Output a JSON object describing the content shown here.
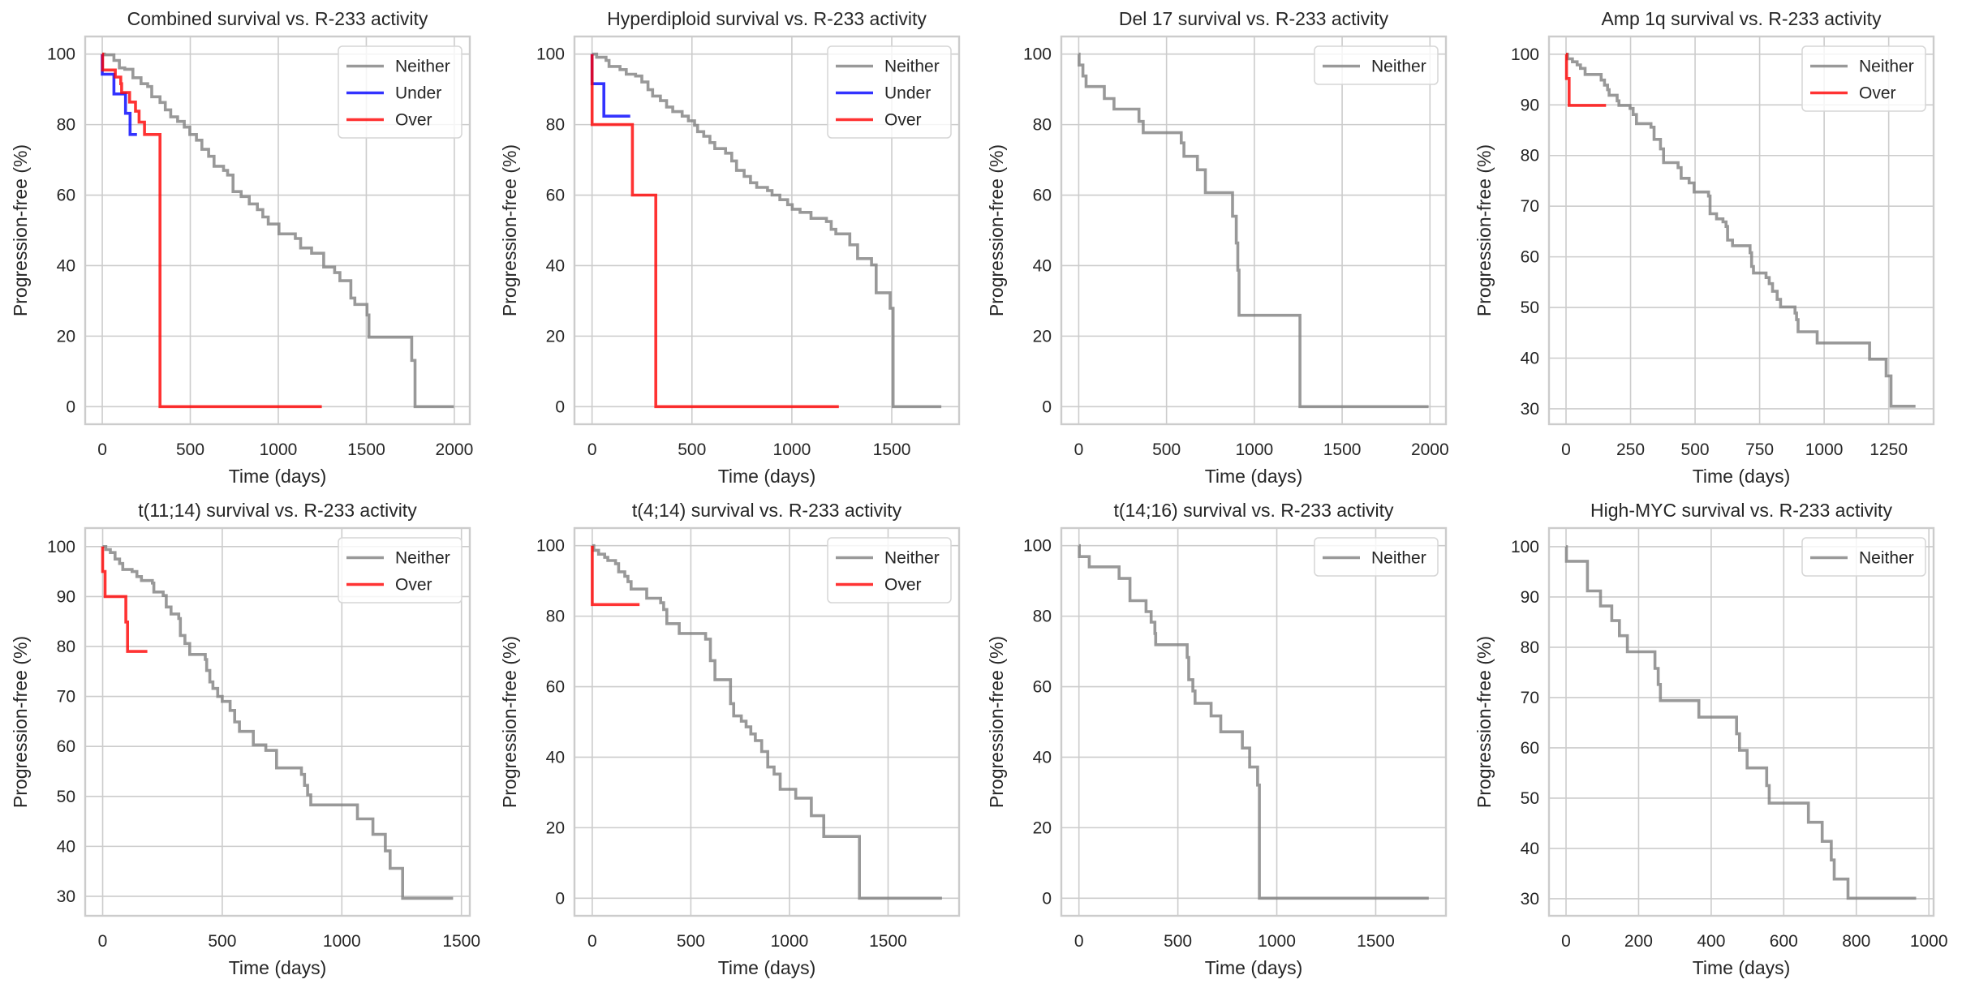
{
  "figure": {
    "colors": {
      "Neither": "#808080",
      "Under": "#0000ff",
      "Over": "#ff0000"
    }
  },
  "chart_data": [
    {
      "type": "line",
      "title": "Combined survival vs. R-233 activity",
      "xlabel": "Time (days)",
      "ylabel": "Progression-free (%)",
      "xlim": [
        -97,
        2088
      ],
      "ylim": [
        -5,
        105
      ],
      "xticks": [
        0,
        500,
        1000,
        1500,
        2000
      ],
      "yticks": [
        0,
        20,
        40,
        60,
        80,
        100
      ],
      "grid": true,
      "legend": "top-right",
      "series": [
        {
          "name": "Neither",
          "step": true,
          "x": [
            0,
            12,
            66,
            97,
            128,
            174,
            220,
            258,
            281,
            328,
            358,
            389,
            428,
            466,
            497,
            535,
            566,
            604,
            635,
            689,
            712,
            743,
            789,
            835,
            881,
            912,
            943,
            1004,
            1097,
            1127,
            1189,
            1258,
            1320,
            1350,
            1412,
            1435,
            1504,
            1515,
            1523,
            1758,
            1777,
            1997
          ],
          "y": [
            100,
            99.8,
            98.2,
            96.1,
            95.7,
            93.3,
            91.6,
            90.8,
            87.9,
            86.3,
            84.2,
            82.2,
            80.9,
            79.3,
            77.2,
            75.6,
            73,
            71,
            68.2,
            67,
            65.7,
            61,
            59.6,
            57.5,
            55.9,
            53.8,
            51.8,
            49,
            47.7,
            45,
            43.5,
            39.6,
            38,
            35.7,
            30.8,
            29,
            26,
            19.7,
            19.7,
            13.1,
            0,
            0
          ]
        },
        {
          "name": "Under",
          "step": true,
          "x": [
            0,
            0,
            66,
            132,
            158,
            197
          ],
          "y": [
            100,
            94.3,
            88.7,
            83.2,
            77.2,
            77.2
          ]
        },
        {
          "name": "Over",
          "step": true,
          "x": [
            0,
            2,
            74,
            105,
            110,
            155,
            189,
            209,
            240,
            328,
            1247
          ],
          "y": [
            100,
            95.5,
            93.5,
            91.6,
            89.1,
            86.4,
            83.8,
            80.7,
            77.2,
            0,
            0
          ]
        }
      ]
    },
    {
      "type": "line",
      "title": "Hyperdiploid survival vs. R-233 activity",
      "xlabel": "Time (days)",
      "ylabel": "Progression-free (%)",
      "xlim": [
        -88,
        1837
      ],
      "ylim": [
        -5,
        105
      ],
      "xticks": [
        0,
        500,
        1000,
        1500
      ],
      "yticks": [
        0,
        20,
        40,
        60,
        80,
        100
      ],
      "grid": true,
      "legend": "top-right",
      "series": [
        {
          "name": "Neither",
          "step": true,
          "x": [
            0,
            23,
            70,
            85,
            140,
            171,
            218,
            249,
            280,
            303,
            342,
            373,
            404,
            451,
            482,
            513,
            528,
            559,
            590,
            614,
            668,
            699,
            723,
            761,
            793,
            824,
            878,
            901,
            940,
            979,
            1002,
            1041,
            1096,
            1173,
            1197,
            1220,
            1290,
            1329,
            1399,
            1422,
            1492,
            1507,
            1748
          ],
          "y": [
            100,
            99.1,
            98.2,
            96.5,
            95.6,
            94.3,
            93.8,
            92.1,
            89.9,
            88.1,
            86.8,
            85,
            83.7,
            82.4,
            81.1,
            79.8,
            78,
            76.7,
            74.9,
            73.2,
            71.9,
            69.7,
            67,
            65.3,
            63.5,
            62.2,
            61.3,
            60,
            58.7,
            57.3,
            56,
            55.1,
            53.4,
            52.5,
            50.3,
            49,
            45.9,
            42,
            40.2,
            32.3,
            27.9,
            0,
            0
          ]
        },
        {
          "name": "Under",
          "step": true,
          "x": [
            0,
            0,
            59,
            191
          ],
          "y": [
            100,
            91.6,
            82.4,
            82.4
          ]
        },
        {
          "name": "Over",
          "step": true,
          "x": [
            0,
            0,
            202,
            319,
            1235
          ],
          "y": [
            100,
            80,
            60,
            0,
            0
          ]
        }
      ]
    },
    {
      "type": "line",
      "title": "Del 17 survival vs. R-233 activity",
      "xlabel": "Time (days)",
      "ylabel": "Progression-free (%)",
      "xlim": [
        -99,
        2091
      ],
      "ylim": [
        -5,
        105
      ],
      "xticks": [
        0,
        500,
        1000,
        1500,
        2000
      ],
      "yticks": [
        0,
        20,
        40,
        60,
        80,
        100
      ],
      "grid": true,
      "legend": "top-right",
      "series": [
        {
          "name": "Neither",
          "step": true,
          "x": [
            0,
            2,
            24,
            42,
            146,
            201,
            343,
            367,
            584,
            599,
            676,
            721,
            876,
            897,
            906,
            913,
            1260,
            1992
          ],
          "y": [
            100,
            96.9,
            93.8,
            90.8,
            87.4,
            84.4,
            80.9,
            77.7,
            74.8,
            71,
            67.2,
            60.7,
            54,
            46.4,
            38.7,
            25.9,
            0,
            0
          ]
        }
      ]
    },
    {
      "type": "line",
      "title": "Amp 1q survival vs. R-233 activity",
      "xlabel": "Time (days)",
      "ylabel": "Progression-free (%)",
      "xlim": [
        -66,
        1424
      ],
      "ylim": [
        26.95,
        103.5
      ],
      "xticks": [
        0,
        250,
        500,
        750,
        1000,
        1250
      ],
      "yticks": [
        30,
        40,
        50,
        60,
        70,
        80,
        90,
        100
      ],
      "grid": true,
      "legend": "top-right",
      "series": [
        {
          "name": "Neither",
          "step": true,
          "x": [
            0,
            6,
            25,
            43,
            56,
            74,
            136,
            149,
            161,
            167,
            198,
            205,
            248,
            260,
            273,
            329,
            341,
            366,
            378,
            434,
            446,
            477,
            496,
            552,
            558,
            583,
            608,
            620,
            626,
            645,
            713,
            719,
            726,
            775,
            787,
            800,
            818,
            831,
            887,
            893,
            899,
            973,
            1176,
            1240,
            1259,
            1354
          ],
          "y": [
            100,
            99.1,
            98.5,
            97.9,
            97.2,
            96,
            94.9,
            93.9,
            93,
            91.9,
            90.8,
            89.9,
            89.3,
            88.1,
            86.3,
            85.6,
            83.2,
            81.3,
            78.6,
            77.6,
            75.5,
            74.6,
            72.8,
            72,
            68.5,
            67.5,
            66.9,
            66,
            63.3,
            62.2,
            60.8,
            58.1,
            56.8,
            55.9,
            54.7,
            53.2,
            51.6,
            50.1,
            48.9,
            47.6,
            45.2,
            43,
            39.8,
            36.5,
            30.5,
            30.5
          ]
        },
        {
          "name": "Over",
          "step": true,
          "x": [
            0,
            2,
            12,
            155
          ],
          "y": [
            100,
            95.2,
            89.9,
            89.9
          ]
        }
      ]
    },
    {
      "type": "line",
      "title": "t(11;14) survival vs. R-233 activity",
      "xlabel": "Time (days)",
      "ylabel": "Progression-free (%)",
      "xlim": [
        -73,
        1535
      ],
      "ylim": [
        26.1,
        103.7
      ],
      "xticks": [
        0,
        500,
        1000,
        1500
      ],
      "yticks": [
        30,
        40,
        50,
        60,
        70,
        80,
        90,
        100
      ],
      "grid": true,
      "legend": "top-right",
      "series": [
        {
          "name": "Neither",
          "step": true,
          "x": [
            0,
            13,
            32,
            52,
            71,
            84,
            123,
            143,
            162,
            208,
            214,
            253,
            266,
            286,
            318,
            325,
            344,
            364,
            429,
            435,
            448,
            461,
            481,
            500,
            533,
            552,
            572,
            630,
            682,
            727,
            831,
            844,
            857,
            870,
            1065,
            1130,
            1182,
            1202,
            1254,
            1465
          ],
          "y": [
            100,
            99.4,
            98.8,
            97.5,
            96.6,
            95.4,
            95,
            94,
            93.2,
            92.7,
            90.9,
            90.2,
            87.9,
            86.5,
            85.6,
            82.2,
            80.6,
            78.4,
            77.4,
            75.2,
            72.9,
            71.6,
            70,
            69,
            67.2,
            64.9,
            63,
            60.3,
            59.2,
            55.7,
            54.4,
            52.2,
            50.3,
            48.3,
            45.5,
            42.4,
            39.1,
            35.6,
            29.6,
            29.6
          ]
        },
        {
          "name": "Over",
          "step": true,
          "x": [
            0,
            0,
            10,
            97,
            104,
            187
          ],
          "y": [
            100,
            95,
            90,
            84.9,
            79,
            79
          ]
        }
      ]
    },
    {
      "type": "line",
      "title": "t(4;14) survival vs. R-233 activity",
      "xlabel": "Time (days)",
      "ylabel": "Progression-free (%)",
      "xlim": [
        -90,
        1860
      ],
      "ylim": [
        -5,
        105
      ],
      "xticks": [
        0,
        500,
        1000,
        1500
      ],
      "yticks": [
        0,
        20,
        40,
        60,
        80,
        100
      ],
      "grid": true,
      "legend": "top-right",
      "series": [
        {
          "name": "Neither",
          "step": true,
          "x": [
            0,
            8,
            32,
            63,
            79,
            118,
            134,
            165,
            181,
            197,
            276,
            347,
            362,
            378,
            441,
            575,
            599,
            622,
            701,
            717,
            756,
            780,
            804,
            827,
            859,
            890,
            922,
            953,
            1032,
            1111,
            1174,
            1355,
            1773
          ],
          "y": [
            100,
            98.7,
            97.6,
            96.7,
            95.8,
            94.9,
            92.6,
            91.3,
            89.8,
            87.7,
            85.1,
            83.8,
            81.9,
            77.9,
            75.1,
            73.5,
            67.4,
            62,
            55.2,
            51.7,
            50.2,
            48.6,
            46.6,
            44.7,
            41.6,
            37.2,
            35.2,
            30.9,
            28.4,
            23.4,
            17.5,
            0,
            0
          ]
        },
        {
          "name": "Over",
          "step": true,
          "x": [
            0,
            0,
            240
          ],
          "y": [
            100,
            83.3,
            83.3
          ]
        }
      ]
    },
    {
      "type": "line",
      "title": "t(14;16) survival vs. R-233 activity",
      "xlabel": "Time (days)",
      "ylabel": "Progression-free (%)",
      "xlim": [
        -89,
        1855
      ],
      "ylim": [
        -5,
        105
      ],
      "xticks": [
        0,
        500,
        1000,
        1500
      ],
      "yticks": [
        0,
        20,
        40,
        60,
        80,
        100
      ],
      "grid": true,
      "legend": "top-right",
      "series": [
        {
          "name": "Neither",
          "step": true,
          "x": [
            0,
            2,
            52,
            203,
            258,
            339,
            365,
            384,
            388,
            547,
            555,
            576,
            587,
            668,
            717,
            826,
            863,
            903,
            912,
            1768
          ],
          "y": [
            100,
            96.9,
            94,
            90.7,
            84.4,
            81.3,
            78.3,
            75.1,
            71.9,
            68.3,
            62,
            58.8,
            55.3,
            51.7,
            47.2,
            42.6,
            37.2,
            32.1,
            0,
            0
          ]
        }
      ]
    },
    {
      "type": "line",
      "title": "High-MYC survival vs. R-233 activity",
      "xlabel": "Time (days)",
      "ylabel": "Progression-free (%)",
      "xlim": [
        -47,
        1013
      ],
      "ylim": [
        26.6,
        103.7
      ],
      "xticks": [
        0,
        200,
        400,
        600,
        800,
        1000
      ],
      "yticks": [
        30,
        40,
        50,
        60,
        70,
        80,
        90,
        100
      ],
      "grid": true,
      "legend": "top-right",
      "series": [
        {
          "name": "Neither",
          "step": true,
          "x": [
            0,
            1,
            59,
            95,
            126,
            147,
            169,
            245,
            254,
            260,
            366,
            470,
            478,
            499,
            553,
            560,
            668,
            706,
            731,
            739,
            777,
            965
          ],
          "y": [
            100,
            97.1,
            91.2,
            88.2,
            85.3,
            82.3,
            79.1,
            75.8,
            72.6,
            69.4,
            66.1,
            62.8,
            59.5,
            56,
            52.5,
            49,
            45.2,
            41.4,
            37.7,
            33.9,
            30.1,
            30.1
          ]
        }
      ]
    }
  ]
}
